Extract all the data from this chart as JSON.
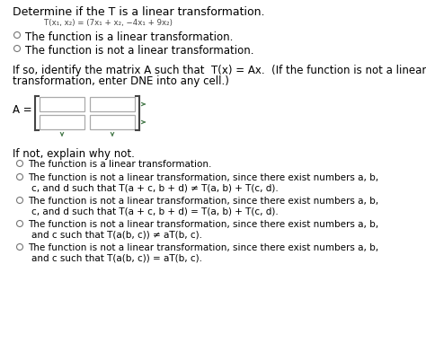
{
  "bg_color": "#ffffff",
  "text_color": "#000000",
  "figsize": [
    4.74,
    3.92
  ],
  "dpi": 100,
  "title_line": "Determine if the T is a linear transformation.",
  "formula_line": "T(x₁, x₂) = (7x₁ + x₂, −4x₁ + 9x₂)",
  "option1": "The function is a linear transformation.",
  "option2": "The function is not a linear transformation.",
  "section2_a": "If so, identify the matrix A such that",
  "section2_b": "T(x) = Ax.",
  "section2_c": "(If the function is not a linear",
  "section2_d": "transformation, enter DNE into any cell.)",
  "ifnot": "If not, explain why not.",
  "r1": "The function is a linear transformation.",
  "r2a": "The function is not a linear transformation, since there exist numbers a, b,",
  "r2b": "c, and d such that T(a + c, b + d) ≠ T(a, b) + T(c, d).",
  "r3a": "The function is not a linear transformation, since there exist numbers a, b,",
  "r3b": "c, and d such that T(a + c, b + d) = T(a, b) + T(c, d).",
  "r4a": "The function is not a linear transformation, since there exist numbers a, b,",
  "r4b": "and c such that T(a(b, c)) ≠ aT(b, c).",
  "r5a": "The function is not a linear transformation, since there exist numbers a, b,",
  "r5b": "and c such that T(a(b, c)) = aT(b, c).",
  "circle_color": "#777777",
  "arrow_color": "#4a7c4e",
  "bracket_color": "#444444",
  "box_color": "#aaaaaa"
}
